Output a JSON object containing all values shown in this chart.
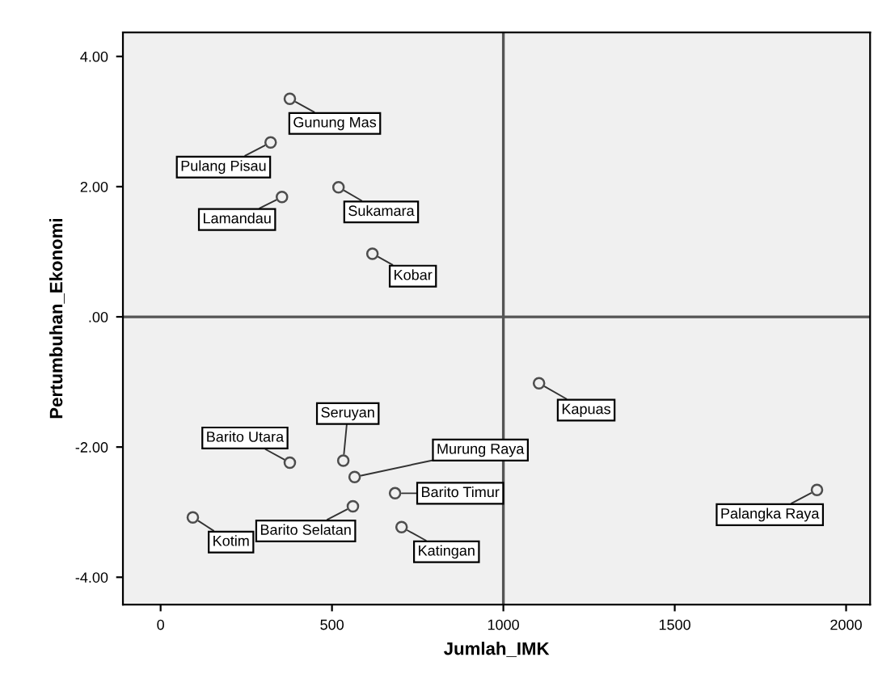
{
  "chart_data": {
    "type": "scatter",
    "xlabel": "Jumlah_IMK",
    "ylabel": "Pertumbuhan_Ekonomi",
    "x": [
      377,
      321,
      354,
      519,
      618,
      1104,
      1915,
      377,
      533,
      566,
      684,
      561,
      94,
      703
    ],
    "values": [
      3.35,
      2.68,
      1.84,
      1.99,
      0.97,
      -1.02,
      -2.66,
      -2.24,
      -2.21,
      -2.46,
      -2.71,
      -2.91,
      -3.08,
      -3.23
    ],
    "color": "#4d4d4d",
    "marker": "circle",
    "xlim": [
      -110,
      2070
    ],
    "ylim": [
      -4.42,
      4.37
    ],
    "xticks": [
      0,
      500,
      1000,
      1500,
      2000
    ],
    "yticks": [
      {
        "value": 4,
        "label": "4.00"
      },
      {
        "value": 2,
        "label": "2.00"
      },
      {
        "value": 0,
        "label": ".00"
      },
      {
        "value": -2,
        "label": "-2.00"
      },
      {
        "value": -4,
        "label": "-4.00"
      }
    ],
    "ref_lines": [
      {
        "axis": "x",
        "value": 1000,
        "color": "#555555"
      },
      {
        "axis": "y",
        "value": 0,
        "color": "#555555"
      }
    ],
    "annotations": [
      {
        "text": "Gunung Mas",
        "x": 377,
        "y": 3.35
      },
      {
        "text": "Pulang Pisau",
        "x": 321,
        "y": 2.68
      },
      {
        "text": "Lamandau",
        "x": 354,
        "y": 1.84
      },
      {
        "text": "Sukamara",
        "x": 519,
        "y": 1.99
      },
      {
        "text": "Kobar",
        "x": 618,
        "y": 0.97
      },
      {
        "text": "Kapuas",
        "x": 1104,
        "y": -1.02
      },
      {
        "text": "Palangka Raya",
        "x": 1915,
        "y": -2.66
      },
      {
        "text": "Barito Utara",
        "x": 377,
        "y": -2.24
      },
      {
        "text": "Seruyan",
        "x": 533,
        "y": -2.21
      },
      {
        "text": "Murung Raya",
        "x": 566,
        "y": -2.46
      },
      {
        "text": "Barito Timur",
        "x": 684,
        "y": -2.71
      },
      {
        "text": "Barito Selatan",
        "x": 561,
        "y": -2.91
      },
      {
        "text": "Kotim",
        "x": 94,
        "y": -3.08
      },
      {
        "text": "Katingan",
        "x": 703,
        "y": -3.23
      }
    ],
    "grid": false,
    "legend": false
  }
}
